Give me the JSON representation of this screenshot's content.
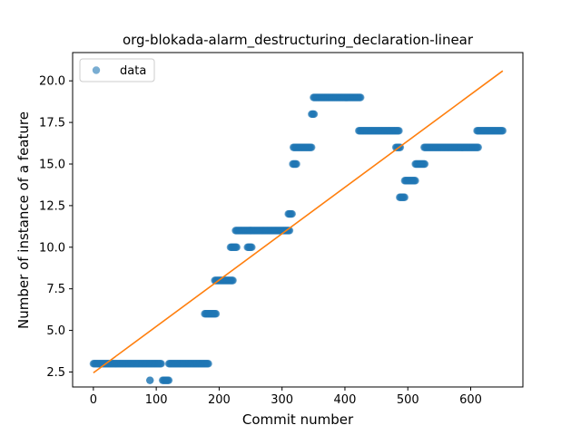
{
  "chart_data": {
    "type": "scatter",
    "title": "org-blokada-alarm_destructuring_declaration-linear",
    "xlabel": "Commit number",
    "ylabel": "Number of instance of a feature",
    "xlim": [
      -33,
      683
    ],
    "ylim": [
      1.6,
      21.7
    ],
    "xticks": [
      0,
      100,
      200,
      300,
      400,
      500,
      600
    ],
    "yticks": [
      2.5,
      5.0,
      7.5,
      10.0,
      12.5,
      15.0,
      17.5,
      20.0
    ],
    "xtick_labels": [
      "0",
      "100",
      "200",
      "300",
      "400",
      "500",
      "600"
    ],
    "ytick_labels": [
      "2.5",
      "5.0",
      "7.5",
      "10.0",
      "12.5",
      "15.0",
      "17.5",
      "20.0"
    ],
    "grid": false,
    "legend": {
      "position": "top-left",
      "entries": [
        "data"
      ]
    },
    "colors": {
      "points": "#1f77b4",
      "fit": "#ff7f0e"
    },
    "series": [
      {
        "name": "data",
        "style": "points",
        "segments": [
          {
            "x": [
              0,
              108
            ],
            "y": 3
          },
          {
            "x": [
              90,
              90
            ],
            "y": 2
          },
          {
            "x": [
              110,
              120
            ],
            "y": 2
          },
          {
            "x": [
              120,
              183
            ],
            "y": 3
          },
          {
            "x": [
              177,
              195
            ],
            "y": 6
          },
          {
            "x": [
              193,
              222
            ],
            "y": 8
          },
          {
            "x": [
              218,
              228
            ],
            "y": 10
          },
          {
            "x": [
              226,
              250
            ],
            "y": 11
          },
          {
            "x": [
              245,
              252
            ],
            "y": 10
          },
          {
            "x": [
              250,
              312
            ],
            "y": 11
          },
          {
            "x": [
              310,
              316
            ],
            "y": 12
          },
          {
            "x": [
              317,
              323
            ],
            "y": 15
          },
          {
            "x": [
              318,
              347
            ],
            "y": 16
          },
          {
            "x": [
              347,
              351
            ],
            "y": 18
          },
          {
            "x": [
              350,
              425
            ],
            "y": 19
          },
          {
            "x": [
              422,
              486
            ],
            "y": 17
          },
          {
            "x": [
              481,
              488
            ],
            "y": 16
          },
          {
            "x": [
              487,
              495
            ],
            "y": 13
          },
          {
            "x": [
              495,
              512
            ],
            "y": 14
          },
          {
            "x": [
              512,
              527
            ],
            "y": 15
          },
          {
            "x": [
              526,
              612
            ],
            "y": 16
          },
          {
            "x": [
              610,
              651
            ],
            "y": 17
          }
        ]
      },
      {
        "style": "line",
        "x": [
          0,
          651
        ],
        "y": [
          2.45,
          20.6
        ]
      }
    ]
  }
}
